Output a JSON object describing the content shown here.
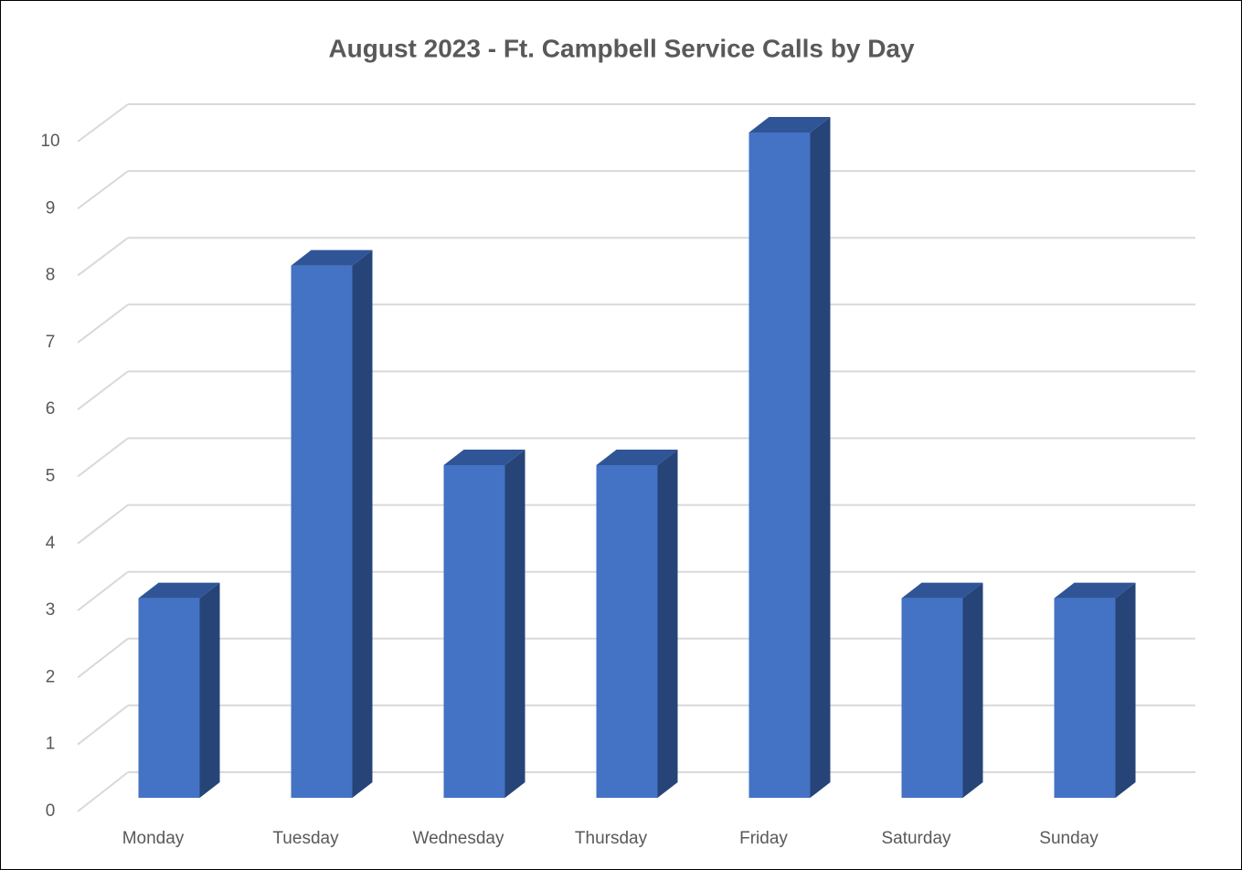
{
  "chart_data": {
    "type": "bar3d",
    "title": "August 2023 - Ft. Campbell Service Calls by Day",
    "categories": [
      "Monday",
      "Tuesday",
      "Wednesday",
      "Thursday",
      "Friday",
      "Saturday",
      "Sunday"
    ],
    "values": [
      3,
      8,
      5,
      5,
      10,
      3,
      3
    ],
    "color": "#4472c4",
    "ylim": [
      0,
      10
    ],
    "yticks": [
      0,
      1,
      2,
      3,
      4,
      5,
      6,
      7,
      8,
      9,
      10
    ],
    "grid": true
  }
}
